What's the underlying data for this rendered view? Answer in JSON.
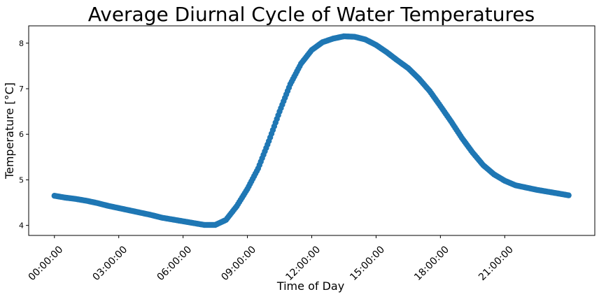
{
  "chart_data": {
    "type": "scatter",
    "title": "Average Diurnal Cycle of Water Temperatures",
    "xlabel": "Time of Day",
    "ylabel": "Temperature [°C]",
    "x_unit": "hours since 00:00:00",
    "xlim": [
      -1.2,
      25.2
    ],
    "ylim": [
      3.78,
      8.38
    ],
    "x_ticks": [
      {
        "value": 0,
        "label": "00:00:00"
      },
      {
        "value": 3,
        "label": "03:00:00"
      },
      {
        "value": 6,
        "label": "06:00:00"
      },
      {
        "value": 9,
        "label": "09:00:00"
      },
      {
        "value": 12,
        "label": "12:00:00"
      },
      {
        "value": 15,
        "label": "15:00:00"
      },
      {
        "value": 18,
        "label": "18:00:00"
      },
      {
        "value": 21,
        "label": "21:00:00"
      }
    ],
    "y_ticks": [
      {
        "value": 4,
        "label": "4"
      },
      {
        "value": 5,
        "label": "5"
      },
      {
        "value": 6,
        "label": "6"
      },
      {
        "value": 7,
        "label": "7"
      },
      {
        "value": 8,
        "label": "8"
      }
    ],
    "grid": false,
    "color": "#1f77b4",
    "series": [
      {
        "x": [
          0,
          0.5,
          1,
          1.5,
          2,
          2.5,
          3,
          3.5,
          4,
          4.5,
          5,
          5.5,
          6,
          6.5,
          7,
          7.5,
          8,
          8.5,
          9,
          9.5,
          10,
          10.5,
          11,
          11.5,
          12,
          12.5,
          13,
          13.5,
          14,
          14.5,
          15,
          15.5,
          16,
          16.5,
          17,
          17.5,
          18,
          18.5,
          19,
          19.5,
          20,
          20.5,
          21,
          21.5,
          22,
          22.5,
          23,
          23.5,
          23.98
        ],
        "y": [
          4.65,
          4.61,
          4.58,
          4.54,
          4.49,
          4.43,
          4.38,
          4.33,
          4.28,
          4.23,
          4.17,
          4.13,
          4.09,
          4.05,
          4.01,
          4.01,
          4.12,
          4.42,
          4.8,
          5.25,
          5.85,
          6.5,
          7.1,
          7.55,
          7.85,
          8.02,
          8.1,
          8.15,
          8.14,
          8.08,
          7.96,
          7.8,
          7.62,
          7.45,
          7.22,
          6.95,
          6.62,
          6.28,
          5.92,
          5.6,
          5.32,
          5.12,
          4.98,
          4.88,
          4.83,
          4.78,
          4.74,
          4.7,
          4.66
        ]
      }
    ]
  }
}
